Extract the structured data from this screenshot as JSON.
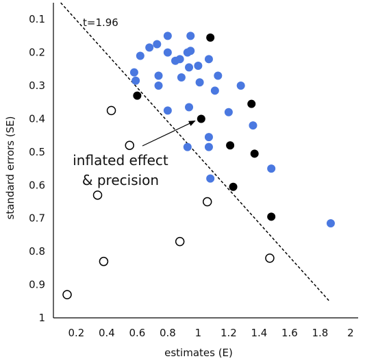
{
  "chart_data": {
    "type": "scatter",
    "xlabel": "estimates (E)",
    "ylabel": "standard errors (SE)",
    "xlim": [
      0.05,
      2.05
    ],
    "ylim": [
      0.05,
      1.0
    ],
    "y_inverted": true,
    "x_ticks": [
      "0.2",
      "0.4",
      "0.6",
      "0.8",
      "1",
      "1.2",
      "1.4",
      "1.6",
      "1.8",
      "2"
    ],
    "y_ticks": [
      "0.1",
      "0.2",
      "0.3",
      "0.4",
      "0.5",
      "0.6",
      "0.7",
      "0.8",
      "0.9",
      "1"
    ],
    "threshold_line": {
      "label": "t=1.96",
      "t": 1.96,
      "style": "dashed"
    },
    "annotation": {
      "line1": "inflated effect",
      "line2": "& precision",
      "arrow_to": {
        "x": 1.02,
        "y": 0.4
      }
    },
    "colors": {
      "blue": "#4a78e0",
      "black": "#000000",
      "open": "#ffffff"
    },
    "series": [
      {
        "marker": "filled-blue",
        "points": [
          [
            0.8,
            0.15
          ],
          [
            0.95,
            0.15
          ],
          [
            0.73,
            0.175
          ],
          [
            0.68,
            0.185
          ],
          [
            0.62,
            0.21
          ],
          [
            0.8,
            0.2
          ],
          [
            0.93,
            0.2
          ],
          [
            0.95,
            0.195
          ],
          [
            0.85,
            0.225
          ],
          [
            0.88,
            0.22
          ],
          [
            1.07,
            0.22
          ],
          [
            1.0,
            0.24
          ],
          [
            0.94,
            0.245
          ],
          [
            0.58,
            0.26
          ],
          [
            0.74,
            0.27
          ],
          [
            0.89,
            0.275
          ],
          [
            1.13,
            0.27
          ],
          [
            0.59,
            0.285
          ],
          [
            1.01,
            0.29
          ],
          [
            0.74,
            0.3
          ],
          [
            1.28,
            0.3
          ],
          [
            1.11,
            0.315
          ],
          [
            0.8,
            0.375
          ],
          [
            0.94,
            0.365
          ],
          [
            1.2,
            0.38
          ],
          [
            1.36,
            0.42
          ],
          [
            1.07,
            0.455
          ],
          [
            0.93,
            0.485
          ],
          [
            1.07,
            0.485
          ],
          [
            1.48,
            0.55
          ],
          [
            1.08,
            0.58
          ],
          [
            1.87,
            0.715
          ]
        ]
      },
      {
        "marker": "filled-black",
        "points": [
          [
            1.08,
            0.155
          ],
          [
            0.6,
            0.33
          ],
          [
            1.35,
            0.355
          ],
          [
            1.02,
            0.4
          ],
          [
            1.21,
            0.48
          ],
          [
            1.37,
            0.505
          ],
          [
            1.23,
            0.605
          ],
          [
            1.48,
            0.695
          ]
        ]
      },
      {
        "marker": "open-circle",
        "points": [
          [
            0.43,
            0.375
          ],
          [
            0.55,
            0.48
          ],
          [
            0.34,
            0.63
          ],
          [
            1.06,
            0.65
          ],
          [
            0.88,
            0.77
          ],
          [
            0.38,
            0.83
          ],
          [
            1.47,
            0.82
          ],
          [
            0.14,
            0.93
          ]
        ]
      }
    ]
  }
}
